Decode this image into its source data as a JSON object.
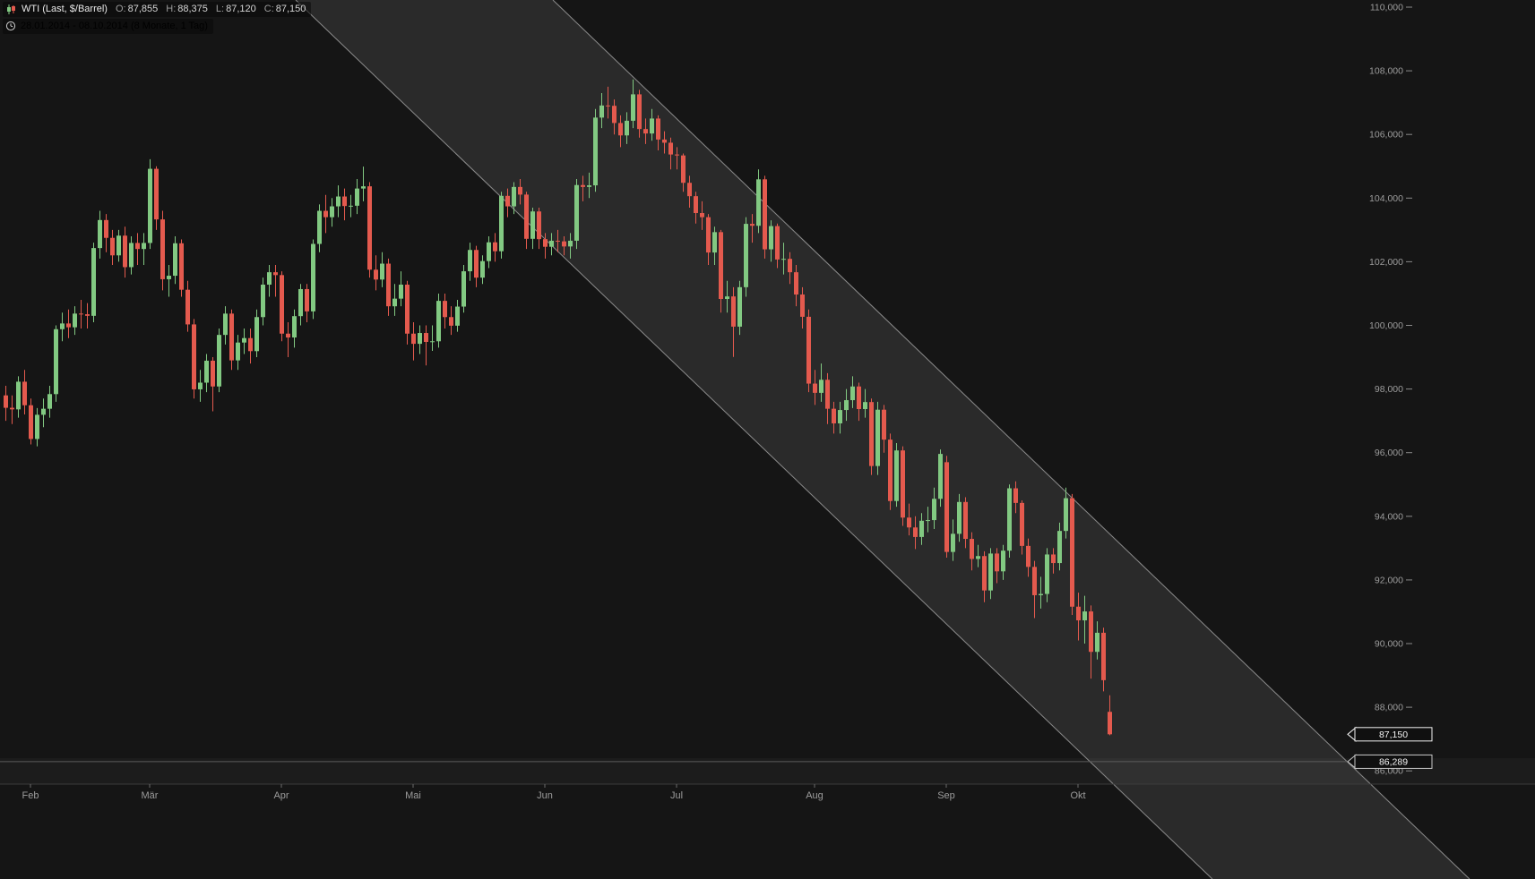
{
  "legend": {
    "title": "WTI (Last, $/Barrel)",
    "o_label": "O:",
    "o_value": "87,855",
    "h_label": "H:",
    "h_value": "88,375",
    "l_label": "L:",
    "l_value": "87,120",
    "c_label": "C:",
    "c_value": "87,150",
    "period": "28.01.2014 - 08.10.2014 (8 Monate, 1 Tag)"
  },
  "chart_data": {
    "type": "candlestick",
    "instrument": "WTI",
    "unit": "$/Barrel",
    "timeframe": "1 Tag",
    "period_start": "28.01.2014",
    "period_end": "08.10.2014",
    "last_price": 87.15,
    "ohlc_last": {
      "open": 87.855,
      "high": 88.375,
      "low": 87.12,
      "close": 87.15
    },
    "ylim": [
      85.6,
      110.2
    ],
    "grid": false,
    "y_ticks": [
      {
        "value": 110,
        "label": "110,000"
      },
      {
        "value": 108,
        "label": "108,000"
      },
      {
        "value": 106,
        "label": "106,000"
      },
      {
        "value": 104,
        "label": "104,000"
      },
      {
        "value": 102,
        "label": "102,000"
      },
      {
        "value": 100,
        "label": "100,000"
      },
      {
        "value": 98,
        "label": "98,000"
      },
      {
        "value": 96,
        "label": "96,000"
      },
      {
        "value": 94,
        "label": "94,000"
      },
      {
        "value": 92,
        "label": "92,000"
      },
      {
        "value": 90,
        "label": "90,000"
      },
      {
        "value": 88,
        "label": "88,000"
      },
      {
        "value": 86,
        "label": "86,000"
      }
    ],
    "x_months": [
      {
        "label": "Feb",
        "index": 4
      },
      {
        "label": "Mär",
        "index": 23
      },
      {
        "label": "Apr",
        "index": 44
      },
      {
        "label": "Mai",
        "index": 65
      },
      {
        "label": "Jun",
        "index": 86
      },
      {
        "label": "Jul",
        "index": 107
      },
      {
        "label": "Aug",
        "index": 129
      },
      {
        "label": "Sep",
        "index": 150
      },
      {
        "label": "Okt",
        "index": 171
      }
    ],
    "price_markers": [
      {
        "label": "87,150",
        "value": 87.15,
        "kind": "last-price"
      },
      {
        "label": "86,289",
        "value": 86.289,
        "kind": "level"
      }
    ],
    "horizontal_line": {
      "value": 86.289
    },
    "channel": {
      "top_x1": 330,
      "top_x2": 617,
      "slope": 0.96
    },
    "colors": {
      "bg": "#151515",
      "up": "#82c982",
      "down": "#e45a4e",
      "axis_text": "#9c9c9c",
      "channel_fill": "rgba(255,255,255,0.09)",
      "channel_line": "#8c8c8c",
      "separator": "#3c3c3c",
      "level_line": "#5a5a5a"
    },
    "candles": [
      [
        97.8,
        98.1,
        97.0,
        97.41
      ],
      [
        97.41,
        97.8,
        96.9,
        97.36
      ],
      [
        97.36,
        98.4,
        97.1,
        98.23
      ],
      [
        98.23,
        98.6,
        97.2,
        97.49
      ],
      [
        97.49,
        97.7,
        96.26,
        96.43
      ],
      [
        96.43,
        97.4,
        96.2,
        97.19
      ],
      [
        97.19,
        97.7,
        96.8,
        97.38
      ],
      [
        97.38,
        98.1,
        97.1,
        97.84
      ],
      [
        97.84,
        100.0,
        97.6,
        99.88
      ],
      [
        99.88,
        100.4,
        99.5,
        100.06
      ],
      [
        100.06,
        100.5,
        99.6,
        99.94
      ],
      [
        99.94,
        100.6,
        99.7,
        100.37
      ],
      [
        100.37,
        100.8,
        99.9,
        100.35
      ],
      [
        100.35,
        100.7,
        99.9,
        100.3
      ],
      [
        100.3,
        102.6,
        100.1,
        102.43
      ],
      [
        102.43,
        103.6,
        102.1,
        103.31
      ],
      [
        103.31,
        103.5,
        102.3,
        102.75
      ],
      [
        102.75,
        103.0,
        101.9,
        102.2
      ],
      [
        102.2,
        103.0,
        102.0,
        102.82
      ],
      [
        102.82,
        103.1,
        101.5,
        101.83
      ],
      [
        101.83,
        102.8,
        101.6,
        102.59
      ],
      [
        102.59,
        102.9,
        101.9,
        102.4
      ],
      [
        102.4,
        102.9,
        101.9,
        102.59
      ],
      [
        102.59,
        105.22,
        102.4,
        104.92
      ],
      [
        104.92,
        105.0,
        103.0,
        103.33
      ],
      [
        103.33,
        103.6,
        101.1,
        101.45
      ],
      [
        101.45,
        101.9,
        100.9,
        101.56
      ],
      [
        101.56,
        102.8,
        101.3,
        102.58
      ],
      [
        102.58,
        102.7,
        100.9,
        101.12
      ],
      [
        101.12,
        101.4,
        99.8,
        100.03
      ],
      [
        100.03,
        100.2,
        97.7,
        97.99
      ],
      [
        97.99,
        98.6,
        97.6,
        98.2
      ],
      [
        98.2,
        99.1,
        97.9,
        98.89
      ],
      [
        98.89,
        99.0,
        97.3,
        98.08
      ],
      [
        98.08,
        99.9,
        97.9,
        99.7
      ],
      [
        99.7,
        100.6,
        99.4,
        100.37
      ],
      [
        100.37,
        100.5,
        98.6,
        98.9
      ],
      [
        98.9,
        99.7,
        98.6,
        99.46
      ],
      [
        99.46,
        99.9,
        99.1,
        99.6
      ],
      [
        99.6,
        99.9,
        98.8,
        99.19
      ],
      [
        99.19,
        100.5,
        99.0,
        100.26
      ],
      [
        100.26,
        101.5,
        100.0,
        101.28
      ],
      [
        101.28,
        101.9,
        100.9,
        101.67
      ],
      [
        101.67,
        101.9,
        100.9,
        101.58
      ],
      [
        101.58,
        101.7,
        99.5,
        99.74
      ],
      [
        99.74,
        100.1,
        99.0,
        99.62
      ],
      [
        99.62,
        100.5,
        99.3,
        100.29
      ],
      [
        100.29,
        101.3,
        100.0,
        101.14
      ],
      [
        101.14,
        101.3,
        100.1,
        100.44
      ],
      [
        100.44,
        102.7,
        100.2,
        102.56
      ],
      [
        102.56,
        103.8,
        102.3,
        103.6
      ],
      [
        103.6,
        104.1,
        102.9,
        103.4
      ],
      [
        103.4,
        104.0,
        103.1,
        103.74
      ],
      [
        103.74,
        104.4,
        103.4,
        104.05
      ],
      [
        104.05,
        104.3,
        103.3,
        103.75
      ],
      [
        103.75,
        104.1,
        103.4,
        103.76
      ],
      [
        103.76,
        104.6,
        103.5,
        104.3
      ],
      [
        104.3,
        104.99,
        103.9,
        104.37
      ],
      [
        104.37,
        104.5,
        101.5,
        101.75
      ],
      [
        101.75,
        102.2,
        101.1,
        101.44
      ],
      [
        101.44,
        102.3,
        101.2,
        101.94
      ],
      [
        101.94,
        102.1,
        100.3,
        100.6
      ],
      [
        100.6,
        101.3,
        100.3,
        100.84
      ],
      [
        100.84,
        101.7,
        100.6,
        101.28
      ],
      [
        101.28,
        101.4,
        99.4,
        99.74
      ],
      [
        99.74,
        100.1,
        98.9,
        99.42
      ],
      [
        99.42,
        100.0,
        99.1,
        99.76
      ],
      [
        99.76,
        100.0,
        98.74,
        99.48
      ],
      [
        99.48,
        100.0,
        99.2,
        99.5
      ],
      [
        99.5,
        101.0,
        99.3,
        100.77
      ],
      [
        100.77,
        101.0,
        99.9,
        100.26
      ],
      [
        100.26,
        100.6,
        99.7,
        99.99
      ],
      [
        99.99,
        100.8,
        99.8,
        100.59
      ],
      [
        100.59,
        101.9,
        100.4,
        101.7
      ],
      [
        101.7,
        102.6,
        101.4,
        102.37
      ],
      [
        102.37,
        102.5,
        101.2,
        101.5
      ],
      [
        101.5,
        102.2,
        101.3,
        102.02
      ],
      [
        102.02,
        102.8,
        101.8,
        102.61
      ],
      [
        102.61,
        102.9,
        102.0,
        102.33
      ],
      [
        102.33,
        104.2,
        102.1,
        104.07
      ],
      [
        104.07,
        104.3,
        103.4,
        103.74
      ],
      [
        103.74,
        104.5,
        103.5,
        104.35
      ],
      [
        104.35,
        104.6,
        103.8,
        104.11
      ],
      [
        104.11,
        104.2,
        102.4,
        102.72
      ],
      [
        102.72,
        103.7,
        102.4,
        103.58
      ],
      [
        103.58,
        103.7,
        102.4,
        102.71
      ],
      [
        102.71,
        102.9,
        102.1,
        102.47
      ],
      [
        102.47,
        102.9,
        102.2,
        102.66
      ],
      [
        102.66,
        103.0,
        102.3,
        102.64
      ],
      [
        102.64,
        102.8,
        102.2,
        102.48
      ],
      [
        102.48,
        102.9,
        102.1,
        102.66
      ],
      [
        102.66,
        104.6,
        102.4,
        104.41
      ],
      [
        104.41,
        104.7,
        103.9,
        104.35
      ],
      [
        104.35,
        104.8,
        104.0,
        104.4
      ],
      [
        104.4,
        106.8,
        104.2,
        106.53
      ],
      [
        106.53,
        107.3,
        106.2,
        106.91
      ],
      [
        106.91,
        107.5,
        106.5,
        106.9
      ],
      [
        106.9,
        107.1,
        106.0,
        106.36
      ],
      [
        106.36,
        106.6,
        105.6,
        105.97
      ],
      [
        105.97,
        106.7,
        105.7,
        106.43
      ],
      [
        106.43,
        107.73,
        106.2,
        107.26
      ],
      [
        107.26,
        107.4,
        105.9,
        106.17
      ],
      [
        106.17,
        106.5,
        105.7,
        106.03
      ],
      [
        106.03,
        106.8,
        105.8,
        106.5
      ],
      [
        106.5,
        106.6,
        105.5,
        105.84
      ],
      [
        105.84,
        106.1,
        105.4,
        105.74
      ],
      [
        105.74,
        105.9,
        104.9,
        105.37
      ],
      [
        105.37,
        105.6,
        104.9,
        105.34
      ],
      [
        105.34,
        105.4,
        104.2,
        104.48
      ],
      [
        104.48,
        104.7,
        103.7,
        104.06
      ],
      [
        104.06,
        104.2,
        103.2,
        103.53
      ],
      [
        103.53,
        103.9,
        103.0,
        103.4
      ],
      [
        103.4,
        103.5,
        101.9,
        102.29
      ],
      [
        102.29,
        103.1,
        101.9,
        102.93
      ],
      [
        102.93,
        103.0,
        100.4,
        100.83
      ],
      [
        100.83,
        101.4,
        100.4,
        100.91
      ],
      [
        100.91,
        101.2,
        99.01,
        99.96
      ],
      [
        99.96,
        101.4,
        99.7,
        101.2
      ],
      [
        101.2,
        103.4,
        100.9,
        103.19
      ],
      [
        103.19,
        103.5,
        102.6,
        103.13
      ],
      [
        103.13,
        104.9,
        102.9,
        104.59
      ],
      [
        104.59,
        104.7,
        102.1,
        102.39
      ],
      [
        102.39,
        103.3,
        102.0,
        103.12
      ],
      [
        103.12,
        103.2,
        101.8,
        102.07
      ],
      [
        102.07,
        102.6,
        101.6,
        102.09
      ],
      [
        102.09,
        102.3,
        101.3,
        101.67
      ],
      [
        101.67,
        101.9,
        100.6,
        100.97
      ],
      [
        100.97,
        101.2,
        99.9,
        100.27
      ],
      [
        100.27,
        100.5,
        97.9,
        98.17
      ],
      [
        98.17,
        98.6,
        97.5,
        97.88
      ],
      [
        97.88,
        98.8,
        97.6,
        98.29
      ],
      [
        98.29,
        98.5,
        96.9,
        97.38
      ],
      [
        97.38,
        97.6,
        96.6,
        96.92
      ],
      [
        96.92,
        97.6,
        96.6,
        97.34
      ],
      [
        97.34,
        98.0,
        97.0,
        97.65
      ],
      [
        97.65,
        98.4,
        97.4,
        98.08
      ],
      [
        98.08,
        98.2,
        97.0,
        97.37
      ],
      [
        97.37,
        98.0,
        97.1,
        97.59
      ],
      [
        97.59,
        97.7,
        95.3,
        95.58
      ],
      [
        95.58,
        97.6,
        95.3,
        97.35
      ],
      [
        97.35,
        97.5,
        96.0,
        96.41
      ],
      [
        96.41,
        96.6,
        94.2,
        94.48
      ],
      [
        94.48,
        96.3,
        94.3,
        96.07
      ],
      [
        96.07,
        96.2,
        93.7,
        93.96
      ],
      [
        93.96,
        94.4,
        93.4,
        93.65
      ],
      [
        93.65,
        94.0,
        92.97,
        93.35
      ],
      [
        93.35,
        94.1,
        93.1,
        93.86
      ],
      [
        93.86,
        94.3,
        93.5,
        93.88
      ],
      [
        93.88,
        94.9,
        93.6,
        94.55
      ],
      [
        94.55,
        96.1,
        94.3,
        95.96
      ],
      [
        95.7,
        95.9,
        92.7,
        92.88
      ],
      [
        92.88,
        93.9,
        92.6,
        93.45
      ],
      [
        93.45,
        94.7,
        93.2,
        94.45
      ],
      [
        94.45,
        94.6,
        93.0,
        93.29
      ],
      [
        93.29,
        93.5,
        92.3,
        92.66
      ],
      [
        92.66,
        93.1,
        92.4,
        92.75
      ],
      [
        92.75,
        92.9,
        91.3,
        91.67
      ],
      [
        91.67,
        93.0,
        91.4,
        92.83
      ],
      [
        92.83,
        93.0,
        91.9,
        92.27
      ],
      [
        92.27,
        93.1,
        92.0,
        92.92
      ],
      [
        92.92,
        95.0,
        92.7,
        94.88
      ],
      [
        94.88,
        95.1,
        94.1,
        94.42
      ],
      [
        94.42,
        94.5,
        92.8,
        93.07
      ],
      [
        93.07,
        93.3,
        92.1,
        92.41
      ],
      [
        92.41,
        92.6,
        90.8,
        91.52
      ],
      [
        91.52,
        92.1,
        91.1,
        91.56
      ],
      [
        91.56,
        93.0,
        91.3,
        92.8
      ],
      [
        92.8,
        93.0,
        92.2,
        92.53
      ],
      [
        92.53,
        93.8,
        92.3,
        93.54
      ],
      [
        93.54,
        94.9,
        93.3,
        94.57
      ],
      [
        94.57,
        94.7,
        90.9,
        91.16
      ],
      [
        91.16,
        91.6,
        90.1,
        90.73
      ],
      [
        90.73,
        91.5,
        90.0,
        91.01
      ],
      [
        91.01,
        91.2,
        88.9,
        89.74
      ],
      [
        89.74,
        90.7,
        89.5,
        90.34
      ],
      [
        90.34,
        90.5,
        88.5,
        88.85
      ],
      [
        87.855,
        88.375,
        87.12,
        87.15
      ]
    ]
  }
}
